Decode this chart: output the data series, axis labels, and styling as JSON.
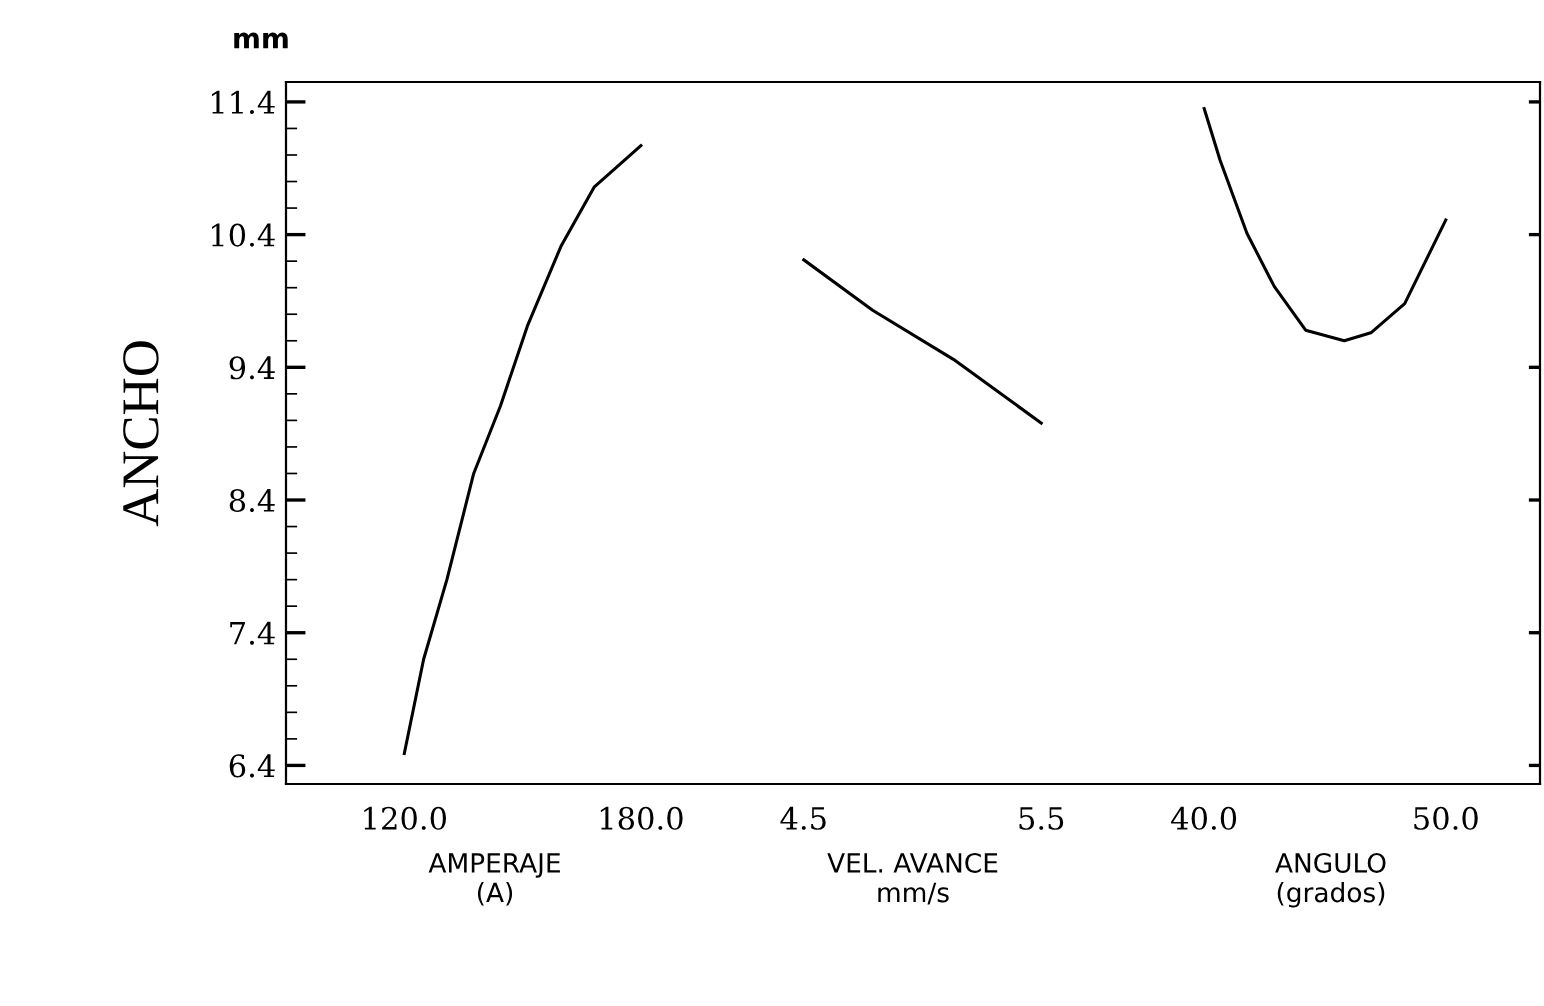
{
  "chart_data": [
    {
      "type": "line",
      "ylabel": "ANCHO",
      "annotations": [
        "mm"
      ],
      "xlabel": "AMPERAJE\n(A)",
      "color": "#000000",
      "x": [
        120,
        124.9,
        130.8,
        137.6,
        144.4,
        151.2,
        159.7,
        168.2,
        180
      ],
      "values": [
        6.49,
        7.2,
        7.8,
        8.6,
        9.11,
        9.71,
        10.31,
        10.76,
        11.07
      ],
      "xlim": [
        90,
        196
      ],
      "xticks": [
        {
          "value": 120,
          "label": "120.0"
        },
        {
          "value": 180,
          "label": "180.0"
        }
      ],
      "ylim": [
        6.26,
        11.55
      ],
      "yticks": [
        6.4,
        7.4,
        8.4,
        9.4,
        10.4,
        11.4
      ]
    },
    {
      "type": "line",
      "xlabel": "VEL. AVANCE\nmm/s",
      "color": "#000000",
      "x": [
        4.5,
        4.79,
        5.13,
        5.5
      ],
      "values": [
        10.21,
        9.83,
        9.46,
        8.98
      ],
      "xlim": [
        4.08,
        5.84
      ],
      "xticks": [
        4.5,
        5.5
      ],
      "ylim": [
        6.26,
        11.55
      ],
      "yticks": [
        6.4,
        7.4,
        8.4,
        9.4,
        10.4,
        11.4
      ],
      "tick_labels": "x"
    },
    {
      "type": "line",
      "xlabel": "ANGULO\n(grados)",
      "color": "#000000",
      "x": [
        40,
        40.66,
        41.77,
        42.9,
        44.2,
        45.8,
        46.9,
        48.3,
        50
      ],
      "values": [
        11.35,
        10.96,
        10.41,
        10.01,
        9.68,
        9.6,
        9.66,
        9.88,
        10.51
      ],
      "xlim": [
        36.6,
        53.9
      ],
      "xticks": [
        {
          "value": 40,
          "label": "40.0"
        },
        {
          "value": 50,
          "label": "50.0"
        }
      ],
      "ylim": [
        6.26,
        11.55
      ],
      "yticks": [
        6.4,
        7.4,
        8.4,
        9.4,
        10.4,
        11.4
      ],
      "tick_labels": "x"
    }
  ]
}
